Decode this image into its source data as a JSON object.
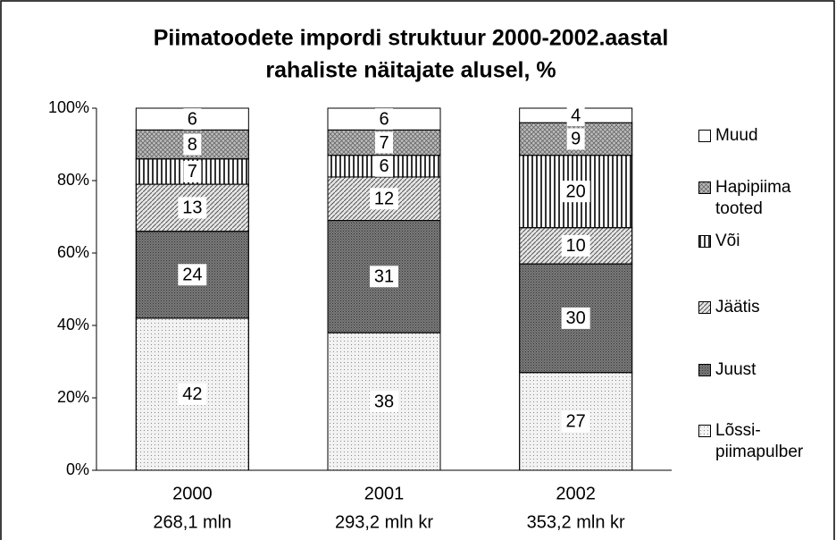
{
  "chart_data": {
    "type": "stacked_bar",
    "title": "Piimatoodete impordi struktuur 2000-2002.aastal",
    "subtitle": "rahaliste näitajate alusel, %",
    "categories": [
      "2000",
      "2001",
      "2002"
    ],
    "category_sublabels": [
      "268,1 mln",
      "293,2 mln kr",
      "353,2 mln kr"
    ],
    "series": [
      {
        "name": "Lõssi-piimapulber",
        "color": "#f2f2f2",
        "pattern": "dots",
        "values": [
          42,
          38,
          27
        ]
      },
      {
        "name": "Juust",
        "color": "#7a7a7a",
        "pattern": "dense",
        "values": [
          24,
          31,
          30
        ]
      },
      {
        "name": "Jäätis",
        "color": "#e6e6e6",
        "pattern": "diagonal",
        "values": [
          13,
          12,
          10
        ]
      },
      {
        "name": "Või",
        "color": "#ffffff",
        "pattern": "vertical",
        "values": [
          7,
          6,
          20
        ]
      },
      {
        "name": "Hapipiima tooted",
        "color": "#bdbdbd",
        "pattern": "cross",
        "values": [
          8,
          7,
          9
        ]
      },
      {
        "name": "Muud",
        "color": "#ffffff",
        "pattern": "none",
        "values": [
          6,
          6,
          4
        ]
      }
    ],
    "ylim": [
      0,
      100
    ],
    "yticks": [
      {
        "value": 0,
        "label": "0%"
      },
      {
        "value": 20,
        "label": "20%"
      },
      {
        "value": 40,
        "label": "40%"
      },
      {
        "value": 60,
        "label": "60%"
      },
      {
        "value": 80,
        "label": "80%"
      },
      {
        "value": 100,
        "label": "100%"
      }
    ]
  }
}
